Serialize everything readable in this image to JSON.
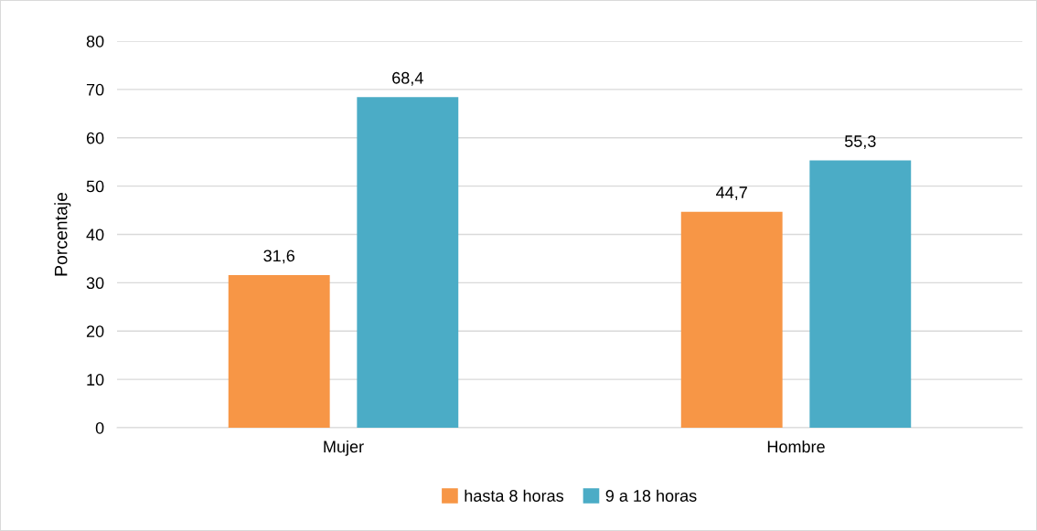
{
  "chart_data": {
    "type": "bar",
    "ylabel": "Porcentaje",
    "categories": [
      "Mujer",
      "Hombre"
    ],
    "series": [
      {
        "name": "hasta 8 horas",
        "color": "#f79646",
        "values": [
          31.6,
          44.7
        ],
        "value_labels": [
          "31,6",
          "44,7"
        ]
      },
      {
        "name": "9 a 18 horas",
        "color": "#4bacc6",
        "values": [
          68.4,
          55.3
        ],
        "value_labels": [
          "68,4",
          "55,3"
        ]
      }
    ],
    "ylim": [
      0,
      80
    ],
    "yticks": [
      0,
      10,
      20,
      30,
      40,
      50,
      60,
      70,
      80
    ],
    "grid": "y",
    "legend": "bottom"
  }
}
